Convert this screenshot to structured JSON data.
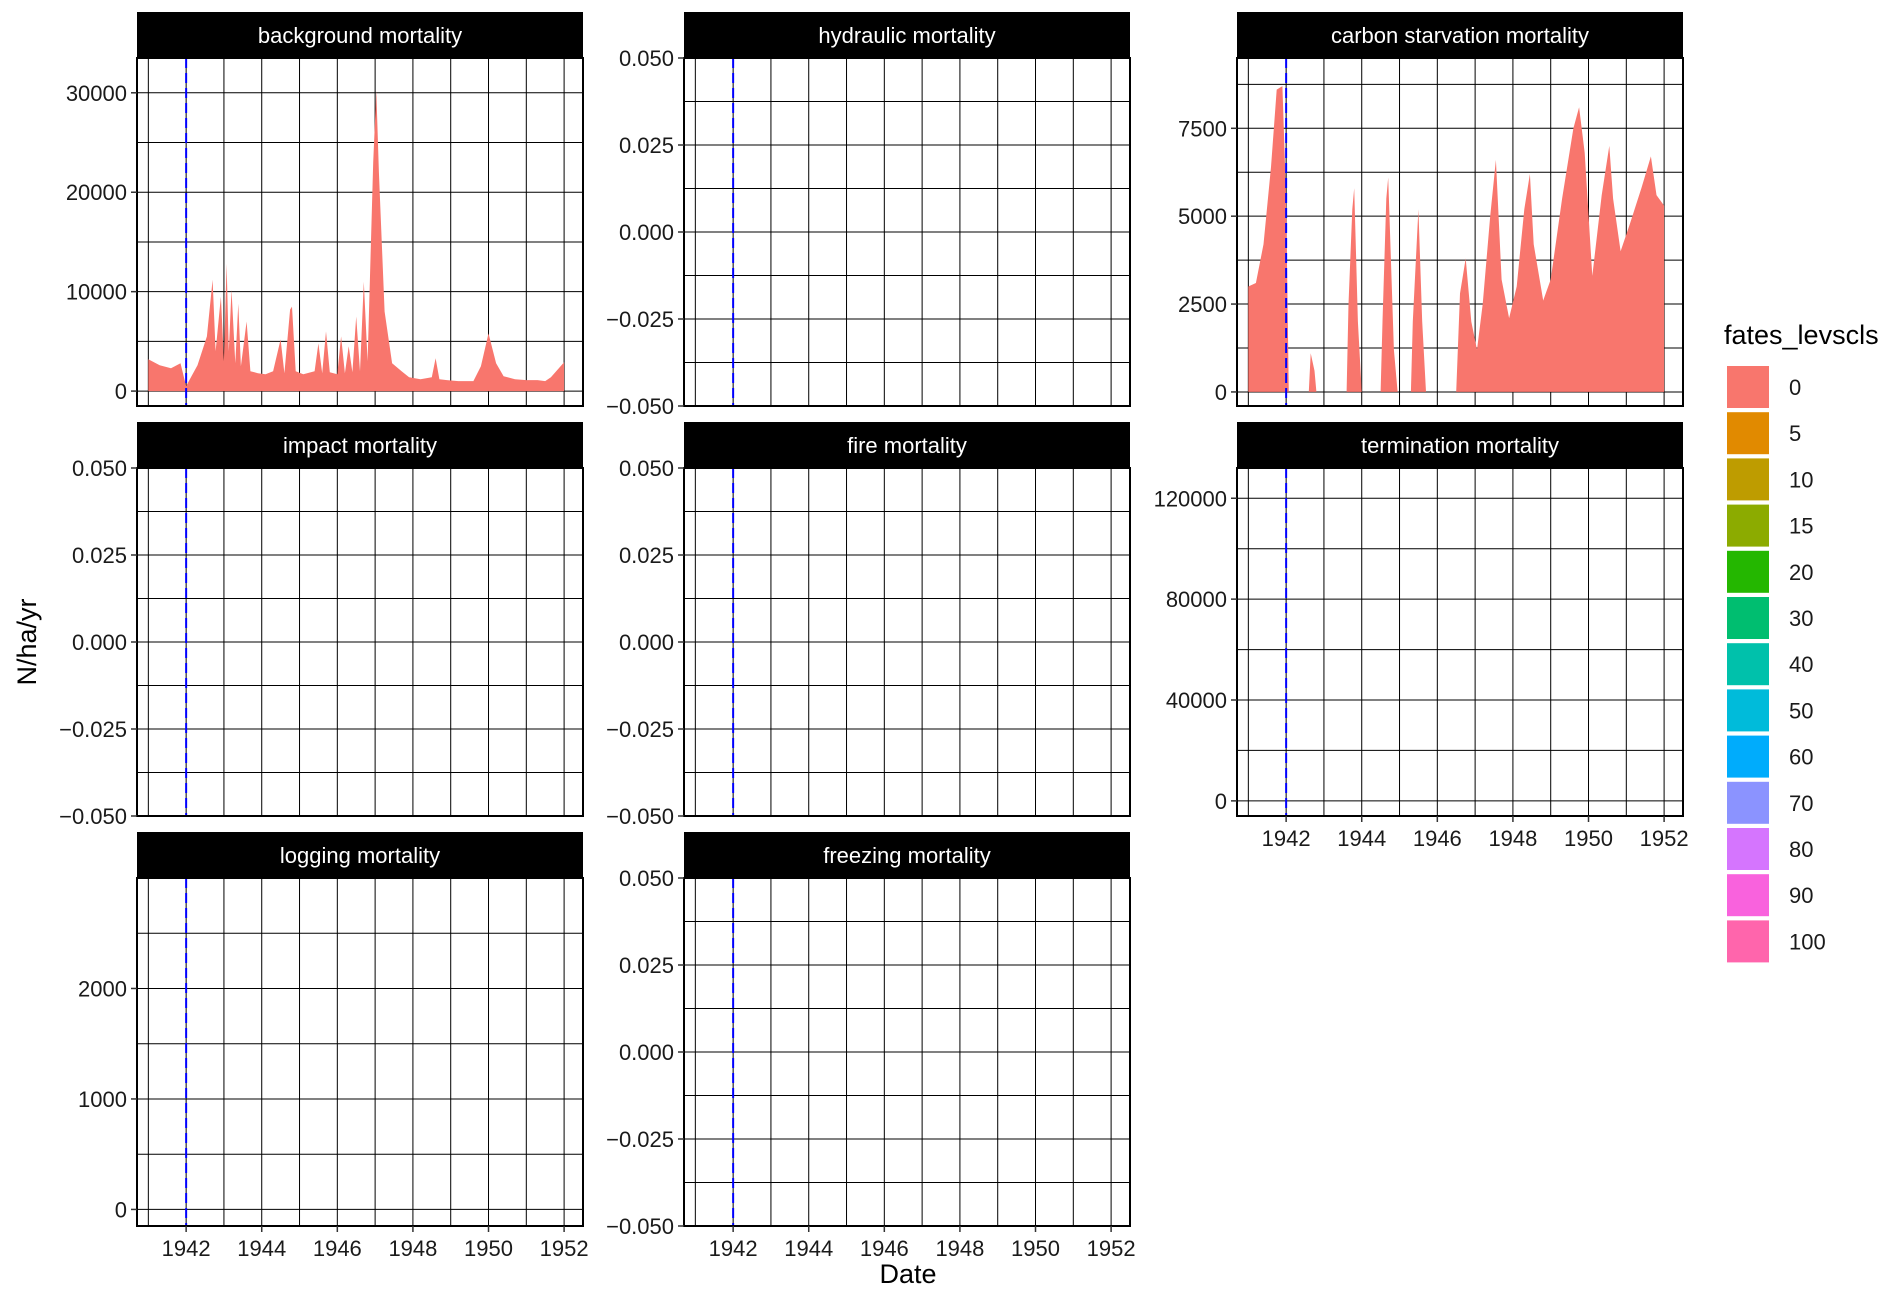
{
  "chart_data": {
    "type": "area",
    "xlabel": "Date",
    "ylabel": "N/ha/yr",
    "x_ticks": [
      "1942",
      "1944",
      "1946",
      "1948",
      "1950",
      "1952"
    ],
    "x_range": [
      1940.7,
      1952.5
    ],
    "reference_line": {
      "x": 1942.0,
      "color": "#0000ff",
      "style": "dashed"
    },
    "grid": true,
    "legend": {
      "title": "fates_levscls",
      "position": "right",
      "entries": [
        {
          "label": "0",
          "color": "#F8766D"
        },
        {
          "label": "5",
          "color": "#E18A00"
        },
        {
          "label": "10",
          "color": "#BE9C00"
        },
        {
          "label": "15",
          "color": "#8CAB00"
        },
        {
          "label": "20",
          "color": "#24B700"
        },
        {
          "label": "30",
          "color": "#00BE70"
        },
        {
          "label": "40",
          "color": "#00C1AB"
        },
        {
          "label": "50",
          "color": "#00BBDA"
        },
        {
          "label": "60",
          "color": "#00ACFC"
        },
        {
          "label": "70",
          "color": "#8B93FF"
        },
        {
          "label": "80",
          "color": "#D575FE"
        },
        {
          "label": "90",
          "color": "#F962DD"
        },
        {
          "label": "100",
          "color": "#FF65AC"
        }
      ]
    },
    "panels": [
      {
        "title": "background mortality",
        "ylim": [
          -1500,
          33500
        ],
        "y_ticks": [
          0,
          10000,
          20000,
          30000
        ],
        "y_tick_labels": [
          "0",
          "10000",
          "20000",
          "30000"
        ],
        "series": [
          {
            "level": "0",
            "color": "#F8766D",
            "points": [
              [
                1941.0,
                3200
              ],
              [
                1941.3,
                2600
              ],
              [
                1941.6,
                2300
              ],
              [
                1941.85,
                2800
              ],
              [
                1942.0,
                500
              ],
              [
                1942.3,
                2600
              ],
              [
                1942.55,
                5500
              ],
              [
                1942.7,
                11200
              ],
              [
                1942.78,
                4000
              ],
              [
                1942.92,
                9500
              ],
              [
                1943.0,
                3000
              ],
              [
                1943.07,
                12800
              ],
              [
                1943.13,
                4000
              ],
              [
                1943.2,
                10200
              ],
              [
                1943.3,
                2800
              ],
              [
                1943.38,
                8800
              ],
              [
                1943.45,
                2500
              ],
              [
                1943.6,
                7000
              ],
              [
                1943.7,
                2000
              ],
              [
                1943.9,
                1800
              ],
              [
                1944.1,
                1700
              ],
              [
                1944.3,
                2000
              ],
              [
                1944.5,
                5200
              ],
              [
                1944.6,
                1800
              ],
              [
                1944.75,
                8200
              ],
              [
                1944.8,
                8500
              ],
              [
                1944.9,
                2000
              ],
              [
                1945.1,
                1700
              ],
              [
                1945.4,
                2000
              ],
              [
                1945.5,
                4800
              ],
              [
                1945.6,
                1800
              ],
              [
                1945.7,
                6000
              ],
              [
                1945.8,
                1900
              ],
              [
                1946.0,
                1700
              ],
              [
                1946.1,
                5500
              ],
              [
                1946.2,
                1800
              ],
              [
                1946.3,
                4500
              ],
              [
                1946.4,
                1900
              ],
              [
                1946.5,
                7500
              ],
              [
                1946.6,
                2000
              ],
              [
                1946.7,
                11000
              ],
              [
                1946.8,
                3000
              ],
              [
                1946.95,
                23000
              ],
              [
                1947.03,
                30200
              ],
              [
                1947.1,
                22000
              ],
              [
                1947.25,
                8000
              ],
              [
                1947.45,
                2800
              ],
              [
                1947.7,
                2000
              ],
              [
                1947.9,
                1400
              ],
              [
                1948.2,
                1200
              ],
              [
                1948.5,
                1400
              ],
              [
                1948.6,
                3300
              ],
              [
                1948.7,
                1200
              ],
              [
                1948.9,
                1100
              ],
              [
                1949.2,
                1000
              ],
              [
                1949.6,
                1000
              ],
              [
                1949.8,
                2500
              ],
              [
                1950.0,
                5800
              ],
              [
                1950.2,
                2800
              ],
              [
                1950.4,
                1500
              ],
              [
                1950.7,
                1200
              ],
              [
                1951.0,
                1100
              ],
              [
                1951.3,
                1100
              ],
              [
                1951.5,
                1000
              ],
              [
                1951.65,
                1400
              ],
              [
                1952.0,
                2900
              ]
            ]
          }
        ]
      },
      {
        "title": "hydraulic mortality",
        "ylim": [
          -0.05,
          0.05
        ],
        "y_ticks": [
          -0.05,
          -0.025,
          0.0,
          0.025,
          0.05
        ],
        "y_tick_labels": [
          "−0.050",
          "−0.025",
          "0.000",
          "0.025",
          "0.050"
        ],
        "series": []
      },
      {
        "title": "carbon starvation mortality",
        "ylim": [
          -400,
          9500
        ],
        "y_ticks": [
          0,
          2500,
          5000,
          7500
        ],
        "y_tick_labels": [
          "0",
          "2500",
          "5000",
          "7500"
        ],
        "series": [
          {
            "level": "0",
            "color": "#F8766D",
            "points": [
              [
                1941.0,
                0
              ],
              [
                1941.0,
                3000
              ],
              [
                1941.2,
                3100
              ],
              [
                1941.4,
                4200
              ],
              [
                1941.6,
                6400
              ],
              [
                1941.75,
                8600
              ],
              [
                1941.9,
                8700
              ],
              [
                1942.0,
                5500
              ],
              [
                1942.07,
                0
              ],
              [
                1942.6,
                0
              ],
              [
                1942.65,
                1100
              ],
              [
                1942.75,
                600
              ],
              [
                1942.8,
                0
              ],
              [
                1943.6,
                0
              ],
              [
                1943.65,
                2500
              ],
              [
                1943.75,
                5200
              ],
              [
                1943.8,
                5800
              ],
              [
                1943.9,
                2000
              ],
              [
                1944.0,
                0
              ],
              [
                1944.5,
                0
              ],
              [
                1944.55,
                2000
              ],
              [
                1944.65,
                5500
              ],
              [
                1944.7,
                6100
              ],
              [
                1944.85,
                1200
              ],
              [
                1944.95,
                0
              ],
              [
                1945.3,
                0
              ],
              [
                1945.35,
                2000
              ],
              [
                1945.5,
                5200
              ],
              [
                1945.6,
                2000
              ],
              [
                1945.7,
                0
              ],
              [
                1946.5,
                0
              ],
              [
                1946.6,
                2800
              ],
              [
                1946.75,
                3800
              ],
              [
                1946.9,
                2000
              ],
              [
                1947.05,
                1200
              ],
              [
                1947.2,
                2500
              ],
              [
                1947.4,
                5000
              ],
              [
                1947.55,
                6600
              ],
              [
                1947.7,
                3200
              ],
              [
                1947.9,
                2100
              ],
              [
                1948.1,
                3000
              ],
              [
                1948.3,
                5200
              ],
              [
                1948.45,
                6200
              ],
              [
                1948.55,
                4200
              ],
              [
                1948.8,
                2600
              ],
              [
                1949.0,
                3200
              ],
              [
                1949.3,
                5500
              ],
              [
                1949.6,
                7500
              ],
              [
                1949.75,
                8100
              ],
              [
                1949.9,
                6800
              ],
              [
                1950.1,
                3300
              ],
              [
                1950.35,
                5600
              ],
              [
                1950.55,
                7000
              ],
              [
                1950.65,
                5500
              ],
              [
                1950.85,
                4000
              ],
              [
                1951.1,
                4800
              ],
              [
                1951.4,
                5800
              ],
              [
                1951.65,
                6700
              ],
              [
                1951.8,
                5600
              ],
              [
                1952.0,
                5300
              ],
              [
                1952.0,
                0
              ]
            ]
          }
        ]
      },
      {
        "title": "impact mortality",
        "ylim": [
          -0.05,
          0.05
        ],
        "y_ticks": [
          -0.05,
          -0.025,
          0.0,
          0.025,
          0.05
        ],
        "y_tick_labels": [
          "−0.050",
          "−0.025",
          "0.000",
          "0.025",
          "0.050"
        ],
        "series": []
      },
      {
        "title": "fire mortality",
        "ylim": [
          -0.05,
          0.05
        ],
        "y_ticks": [
          -0.05,
          -0.025,
          0.0,
          0.025,
          0.05
        ],
        "y_tick_labels": [
          "−0.050",
          "−0.025",
          "0.000",
          "0.025",
          "0.050"
        ],
        "series": []
      },
      {
        "title": "termination mortality",
        "ylim": [
          -6000,
          132000
        ],
        "y_ticks": [
          0,
          40000,
          80000,
          120000
        ],
        "y_tick_labels": [
          "0",
          "40000",
          "80000",
          "120000"
        ],
        "series": []
      },
      {
        "title": "logging mortality",
        "ylim": [
          -150,
          3000
        ],
        "y_ticks": [
          0,
          1000,
          2000
        ],
        "y_tick_labels": [
          "0",
          "1000",
          "2000"
        ],
        "series": []
      },
      {
        "title": "freezing mortality",
        "ylim": [
          -0.05,
          0.05
        ],
        "y_ticks": [
          -0.05,
          -0.025,
          0.0,
          0.025,
          0.05
        ],
        "y_tick_labels": [
          "−0.050",
          "−0.025",
          "0.000",
          "0.025",
          "0.050"
        ],
        "series": []
      }
    ]
  }
}
